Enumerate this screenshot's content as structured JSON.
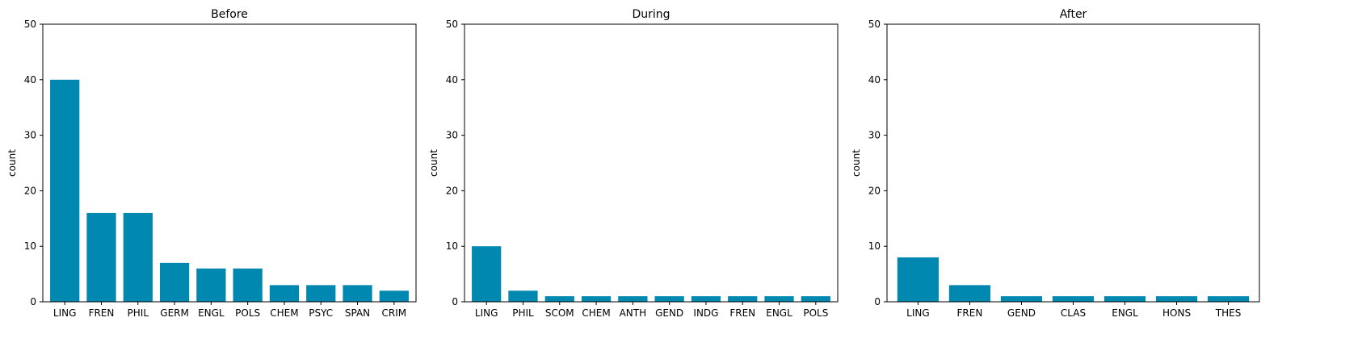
{
  "chart_data": [
    {
      "type": "bar",
      "title": "Before",
      "ylabel": "count",
      "ylim": [
        0,
        50
      ],
      "yticks": [
        0,
        10,
        20,
        30,
        40,
        50
      ],
      "categories": [
        "LING",
        "FREN",
        "PHIL",
        "GERM",
        "ENGL",
        "POLS",
        "CHEM",
        "PSYC",
        "SPAN",
        "CRIM"
      ],
      "values": [
        40,
        16,
        16,
        7,
        6,
        6,
        3,
        3,
        3,
        2
      ],
      "color": "#0088b0",
      "grid": false
    },
    {
      "type": "bar",
      "title": "During",
      "ylabel": "count",
      "ylim": [
        0,
        50
      ],
      "yticks": [
        0,
        10,
        20,
        30,
        40,
        50
      ],
      "categories": [
        "LING",
        "PHIL",
        "SCOM",
        "CHEM",
        "ANTH",
        "GEND",
        "INDG",
        "FREN",
        "ENGL",
        "POLS"
      ],
      "values": [
        10,
        2,
        1,
        1,
        1,
        1,
        1,
        1,
        1,
        1
      ],
      "color": "#0088b0",
      "grid": false
    },
    {
      "type": "bar",
      "title": "After",
      "ylabel": "count",
      "ylim": [
        0,
        50
      ],
      "yticks": [
        0,
        10,
        20,
        30,
        40,
        50
      ],
      "categories": [
        "LING",
        "FREN",
        "GEND",
        "CLAS",
        "ENGL",
        "HONS",
        "THES"
      ],
      "values": [
        8,
        3,
        1,
        1,
        1,
        1,
        1
      ],
      "color": "#0088b0",
      "grid": false
    }
  ]
}
